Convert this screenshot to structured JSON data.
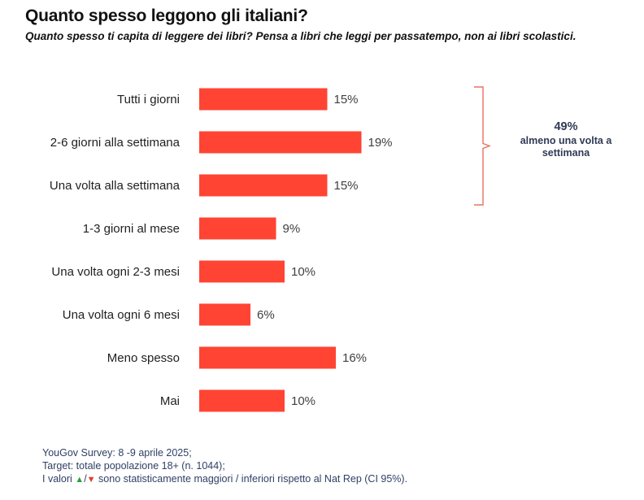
{
  "title": "Quanto spesso leggono gli italiani?",
  "subtitle": "Quanto spesso ti capita di leggere dei libri? Pensa a libri che leggi per passatempo, non ai libri scolastici.",
  "chart_data": {
    "type": "bar",
    "orientation": "horizontal",
    "categories": [
      "Tutti i giorni",
      "2-6 giorni alla settimana",
      "Una volta alla settimana",
      "1-3 giorni al mese",
      "Una volta ogni 2-3 mesi",
      "Una volta ogni 6 mesi",
      "Meno spesso",
      "Mai"
    ],
    "values": [
      15,
      19,
      15,
      9,
      10,
      6,
      16,
      10
    ],
    "value_labels": [
      "15%",
      "19%",
      "15%",
      "9%",
      "10%",
      "6%",
      "16%",
      "10%"
    ],
    "bar_color": "#ff4433",
    "grid": false,
    "legend": "none",
    "annotation": {
      "value": "49%",
      "text": "almeno una volta a settimana",
      "groups_categories": [
        "Tutti i giorni",
        "2-6 giorni alla settimana",
        "Una volta alla settimana"
      ],
      "bracket_color": "#e8735c"
    }
  },
  "footer": {
    "line1": "YouGov Survey: 8 -9 aprile 2025;",
    "line2": "Target: totale popolazione 18+ (n. 1044);",
    "line3_prefix": "I valori ",
    "up_symbol": "▲",
    "separator": "/",
    "down_symbol": "▼",
    "line3_suffix": " sono statisticamente maggiori / inferiori rispetto al Nat Rep (CI 95%).",
    "up_color": "#2e9e3e",
    "down_color": "#e23a2c"
  }
}
